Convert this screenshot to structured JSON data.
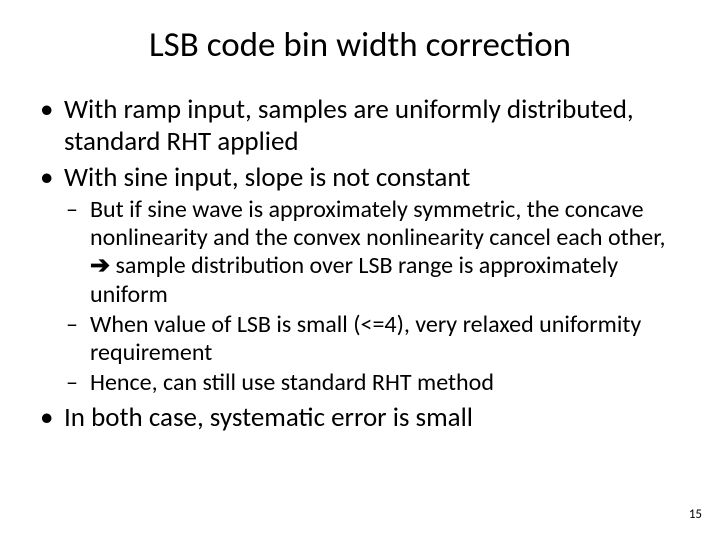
{
  "title": "LSB code bin width correction",
  "bullets": {
    "b1": "With ramp input, samples are uniformly distributed, standard RHT applied",
    "b2": "With sine input, slope is not constant",
    "b2_sub": {
      "s1a": "But if sine wave is approximately symmetric, the concave nonlinearity and the convex nonlinearity cancel each other, ",
      "s1arrow": "➔",
      "s1b": " sample distribution over LSB range is approximately uniform",
      "s2": "When value of LSB is small (<=4), very relaxed uniformity requirement",
      "s3": "Hence, can still use standard RHT method"
    },
    "b3": "In both case, systematic error is small"
  },
  "page_number": "15",
  "colors": {
    "background": "#ffffff",
    "text": "#000000"
  },
  "fonts": {
    "title_size_pt": 35,
    "body_size_pt": 27,
    "sub_size_pt": 24,
    "pagenum_size_pt": 13
  }
}
